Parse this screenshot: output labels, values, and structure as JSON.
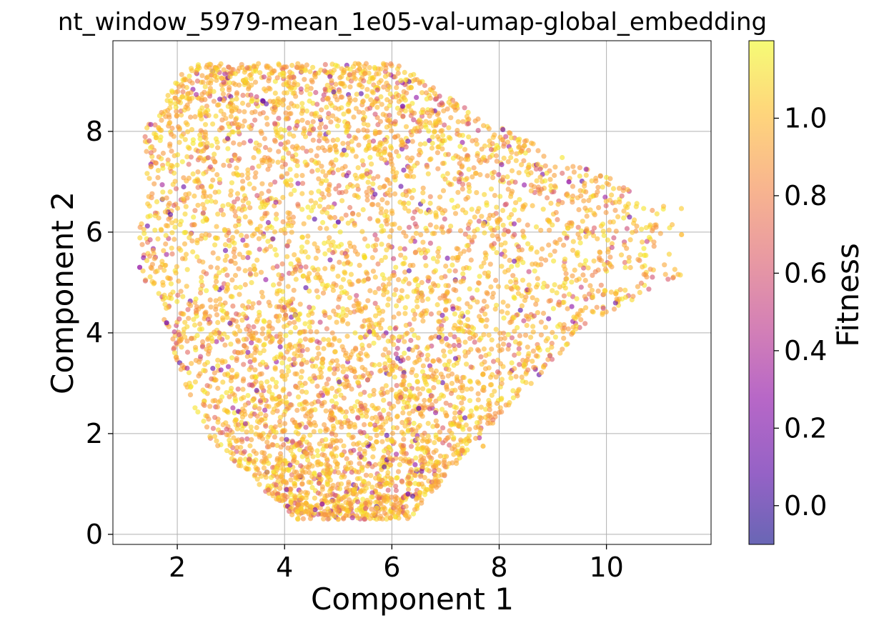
{
  "chart_data": {
    "type": "scatter",
    "title": "nt_window_5979-mean_1e05-val-umap-global_embedding",
    "xlabel": "Component 1",
    "ylabel": "Component 2",
    "xlim": [
      0.8,
      11.95
    ],
    "ylim": [
      -0.2,
      9.8
    ],
    "xticks": [
      2,
      4,
      6,
      8,
      10
    ],
    "yticks": [
      0,
      2,
      4,
      6,
      8
    ],
    "xtick_labels": [
      "2",
      "4",
      "6",
      "8",
      "10"
    ],
    "ytick_labels": [
      "0",
      "2",
      "4",
      "6",
      "8"
    ],
    "grid": true,
    "colormap": "plasma",
    "point_alpha": 0.6,
    "colorbar": {
      "label": "Fitness",
      "range": [
        -0.1,
        1.2
      ],
      "ticks": [
        0.0,
        0.2,
        0.4,
        0.6,
        0.8,
        1.0
      ],
      "tick_labels": [
        "0.0",
        "0.2",
        "0.4",
        "0.6",
        "0.8",
        "1.0"
      ]
    },
    "sample_points": [
      {
        "x": 3.6,
        "y": 8.6,
        "fitness": 0.15
      },
      {
        "x": 6.2,
        "y": 8.5,
        "fitness": 0.2
      },
      {
        "x": 1.3,
        "y": 5.3,
        "fitness": 0.3
      },
      {
        "x": 1.8,
        "y": 4.2,
        "fitness": 0.2
      },
      {
        "x": 5.0,
        "y": 6.2,
        "fitness": 0.1
      },
      {
        "x": 6.5,
        "y": 2.5,
        "fitness": 0.15
      },
      {
        "x": 6.3,
        "y": 0.8,
        "fitness": 0.2
      },
      {
        "x": 4.7,
        "y": 0.6,
        "fitness": 0.3
      },
      {
        "x": 9.3,
        "y": 7.0,
        "fitness": 0.3
      },
      {
        "x": 5.5,
        "y": 9.15,
        "fitness": 0.9
      },
      {
        "x": 11.4,
        "y": 5.95,
        "fitness": 1.0
      },
      {
        "x": 5.0,
        "y": 0.3,
        "fitness": 1.0
      },
      {
        "x": 2.7,
        "y": 9.1,
        "fitness": 1.0
      },
      {
        "x": 7.7,
        "y": 1.75,
        "fitness": 1.0
      },
      {
        "x": 3.1,
        "y": 1.85,
        "fitness": 1.0
      }
    ]
  }
}
